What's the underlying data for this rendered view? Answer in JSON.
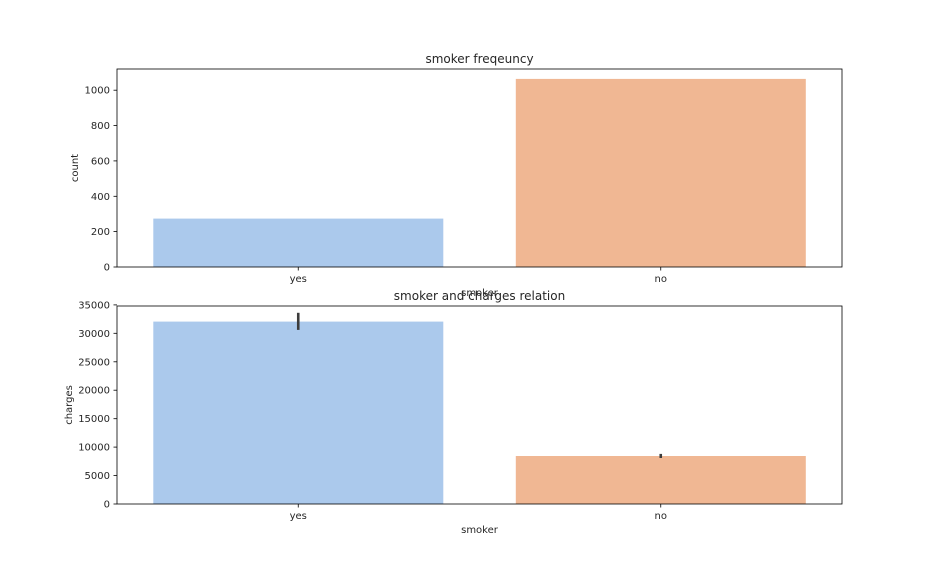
{
  "chart_data": [
    {
      "type": "bar",
      "title": "smoker freqeuncy",
      "xlabel": "smoker",
      "ylabel": "count",
      "categories": [
        "yes",
        "no"
      ],
      "values": [
        274,
        1064
      ],
      "colors": [
        "#abc9ec",
        "#f0b793"
      ],
      "ylim": [
        0,
        1120
      ],
      "yticks": [
        0,
        200,
        400,
        600,
        800,
        1000
      ]
    },
    {
      "type": "bar",
      "title": "smoker and charges relation",
      "xlabel": "smoker",
      "ylabel": "charges",
      "categories": [
        "yes",
        "no"
      ],
      "values": [
        32050,
        8434
      ],
      "error_low": [
        30600,
        8080
      ],
      "error_high": [
        33600,
        8800
      ],
      "colors": [
        "#abc9ec",
        "#f0b793"
      ],
      "ylim": [
        0,
        34800
      ],
      "yticks": [
        0,
        5000,
        10000,
        15000,
        20000,
        25000,
        30000,
        35000
      ]
    }
  ]
}
